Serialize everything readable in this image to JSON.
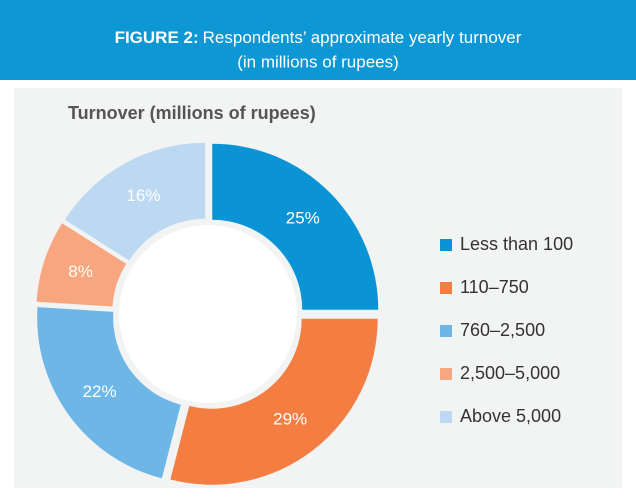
{
  "chart_data": {
    "type": "pie",
    "figure_label": "FIGURE 2:",
    "title_lines": [
      "Respondents’ approximate yearly turnover",
      "(in millions of rupees)"
    ],
    "subtitle": "Turnover (millions of rupees)",
    "categories": [
      "Less than 100",
      "110–750",
      "760–2,500",
      "2,500–5,000",
      "Above 5,000"
    ],
    "values": [
      25,
      29,
      22,
      8,
      16
    ],
    "value_labels": [
      "25%",
      "29%",
      "22%",
      "8%",
      "16%"
    ],
    "colors": [
      "#0a94d6",
      "#f47d42",
      "#6db6e6",
      "#f7a67f",
      "#bcd9f1"
    ],
    "legend": "right"
  }
}
